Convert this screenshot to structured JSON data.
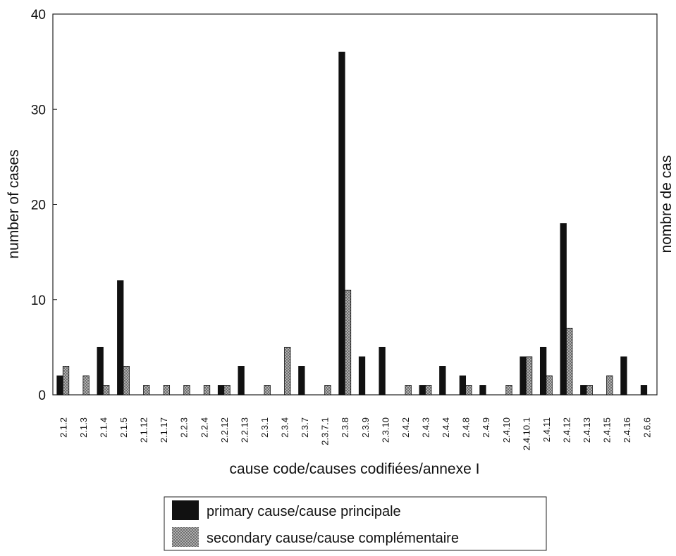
{
  "chart_data": {
    "type": "bar",
    "xlabel": "cause code/causes codifiées/annexe I",
    "ylabel": "number of cases",
    "ylabel_right": "nombre de cas",
    "ylim": [
      0,
      40
    ],
    "yticks": [
      0,
      10,
      20,
      30,
      40
    ],
    "grid": false,
    "legend_position": "bottom-center",
    "categories": [
      "2.1.2",
      "2.1.3",
      "2.1.4",
      "2.1.5",
      "2.1.12",
      "2.1.17",
      "2.2.3",
      "2.2.4",
      "2.2.12",
      "2.2.13",
      "2.3.1",
      "2.3.4",
      "2.3.7",
      "2.3.7.1",
      "2.3.8",
      "2.3.9",
      "2.3.10",
      "2.4.2",
      "2.4.3",
      "2.4.4",
      "2.4.8",
      "2.4.9",
      "2.4.10",
      "2.4.10.1",
      "2.4.11",
      "2.4.12",
      "2.4.13",
      "2.4.15",
      "2.4.16",
      "2.6.6"
    ],
    "series": [
      {
        "name": "primary cause/cause principale",
        "color": "#111111",
        "values": [
          2,
          0,
          5,
          12,
          0,
          0,
          0,
          0,
          1,
          3,
          0,
          0,
          3,
          0,
          36,
          4,
          5,
          0,
          1,
          3,
          2,
          1,
          0,
          4,
          5,
          18,
          1,
          0,
          4,
          1
        ]
      },
      {
        "name": "secondary cause/cause complémentaire",
        "color": "#9a9a9a",
        "values": [
          3,
          2,
          1,
          3,
          1,
          1,
          1,
          1,
          1,
          0,
          1,
          5,
          0,
          1,
          11,
          0,
          0,
          1,
          1,
          0,
          1,
          0,
          1,
          4,
          2,
          7,
          1,
          2,
          0,
          0
        ]
      }
    ]
  }
}
